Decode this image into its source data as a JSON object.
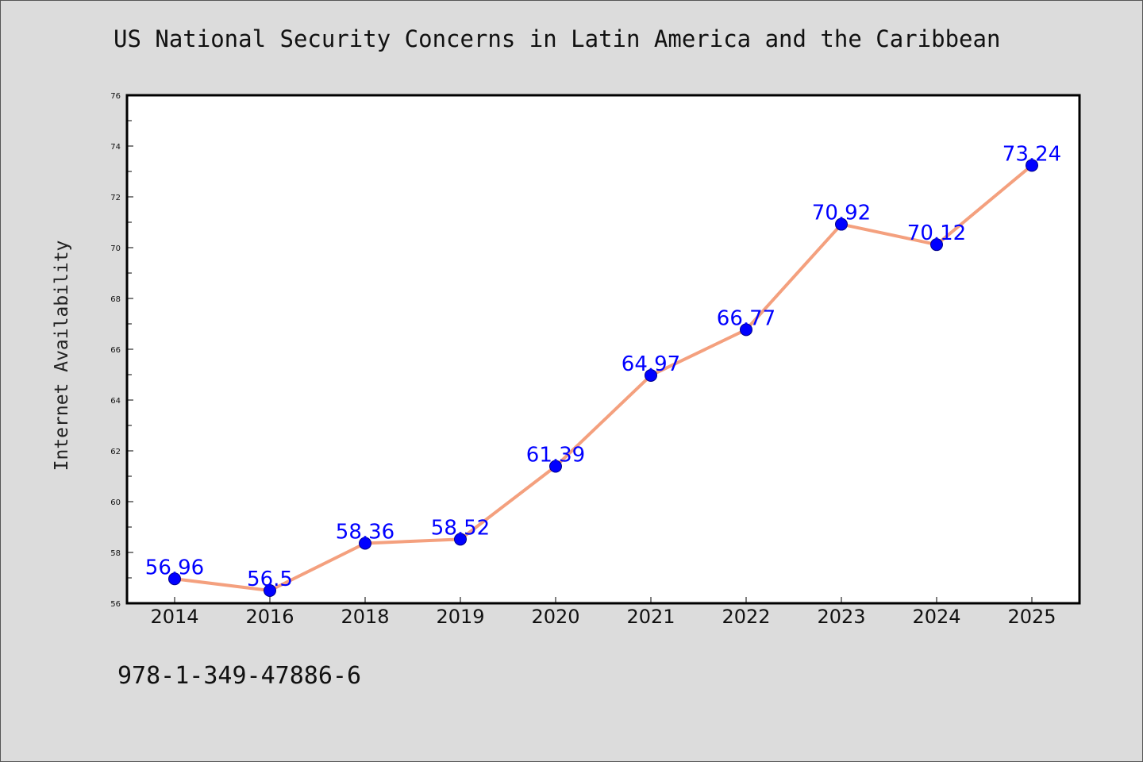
{
  "page": {
    "title": "US National Security Concerns in Latin America and the Caribbean",
    "footer_code": "978-1-349-47886-6"
  },
  "colors": {
    "background": "#dcdcdc",
    "plot_area": "#ffffff",
    "line": "#f4a07e",
    "marker": "#0000ff",
    "data_label": "#0000ff"
  },
  "chart_data": {
    "type": "line",
    "title": "US National Security Concerns in Latin America and the Caribbean",
    "xlabel": "",
    "ylabel": "Internet Availability",
    "categories": [
      "2014",
      "2016",
      "2018",
      "2019",
      "2020",
      "2021",
      "2022",
      "2023",
      "2024",
      "2025"
    ],
    "series": [
      {
        "values": [
          56.96,
          56.5,
          58.36,
          58.52,
          61.39,
          64.97,
          66.77,
          70.92,
          70.12,
          73.24
        ],
        "labels": [
          "56.96",
          "56.5",
          "58.36",
          "58.52",
          "61.39",
          "64.97",
          "66.77",
          "70.92",
          "70.12",
          "73.24"
        ]
      }
    ],
    "ylim": [
      56,
      76
    ],
    "yticks": [
      56,
      58,
      60,
      62,
      64,
      66,
      68,
      70,
      72,
      74,
      76
    ],
    "grid": false,
    "legend": "none"
  }
}
